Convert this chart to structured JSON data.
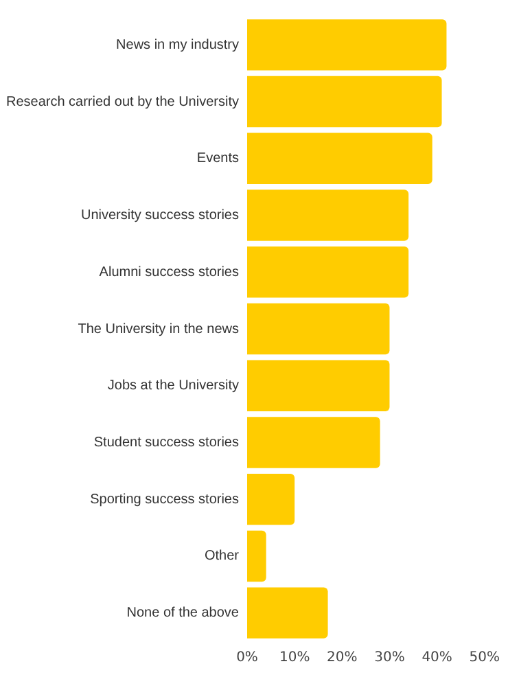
{
  "chart_data": {
    "type": "bar",
    "orientation": "horizontal",
    "categories": [
      "News in my industry",
      "Research carried out by the University",
      "Events",
      "University success stories",
      "Alumni success stories",
      "The University in the news",
      "Jobs at the University",
      "Student success stories",
      "Sporting success stories",
      "Other",
      "None of the above"
    ],
    "values": [
      42,
      41,
      39,
      34,
      34,
      30,
      30,
      28,
      10,
      4,
      17
    ],
    "color": "#ffcc00",
    "xlim": [
      0,
      50
    ],
    "xticks": [
      {
        "value": 0,
        "label": "0%"
      },
      {
        "value": 10,
        "label": "10%"
      },
      {
        "value": 20,
        "label": "20%"
      },
      {
        "value": 30,
        "label": "30%"
      },
      {
        "value": 40,
        "label": "40%"
      },
      {
        "value": 50,
        "label": "50%"
      }
    ],
    "grid": false,
    "legend": false
  }
}
